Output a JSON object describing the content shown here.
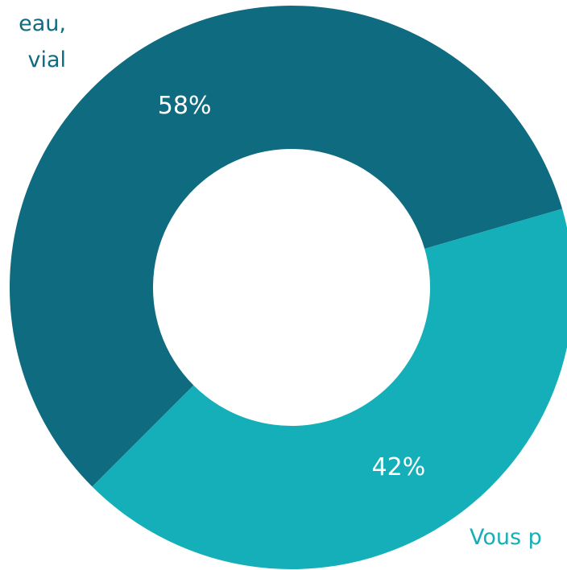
{
  "chart_data": {
    "type": "donut",
    "categories": [
      "eau,\nvial",
      "Vous p"
    ],
    "values": [
      58,
      42
    ],
    "value_labels": [
      "58%",
      "42%"
    ],
    "colors": [
      "#0f6b7f",
      "#14afb8"
    ]
  }
}
